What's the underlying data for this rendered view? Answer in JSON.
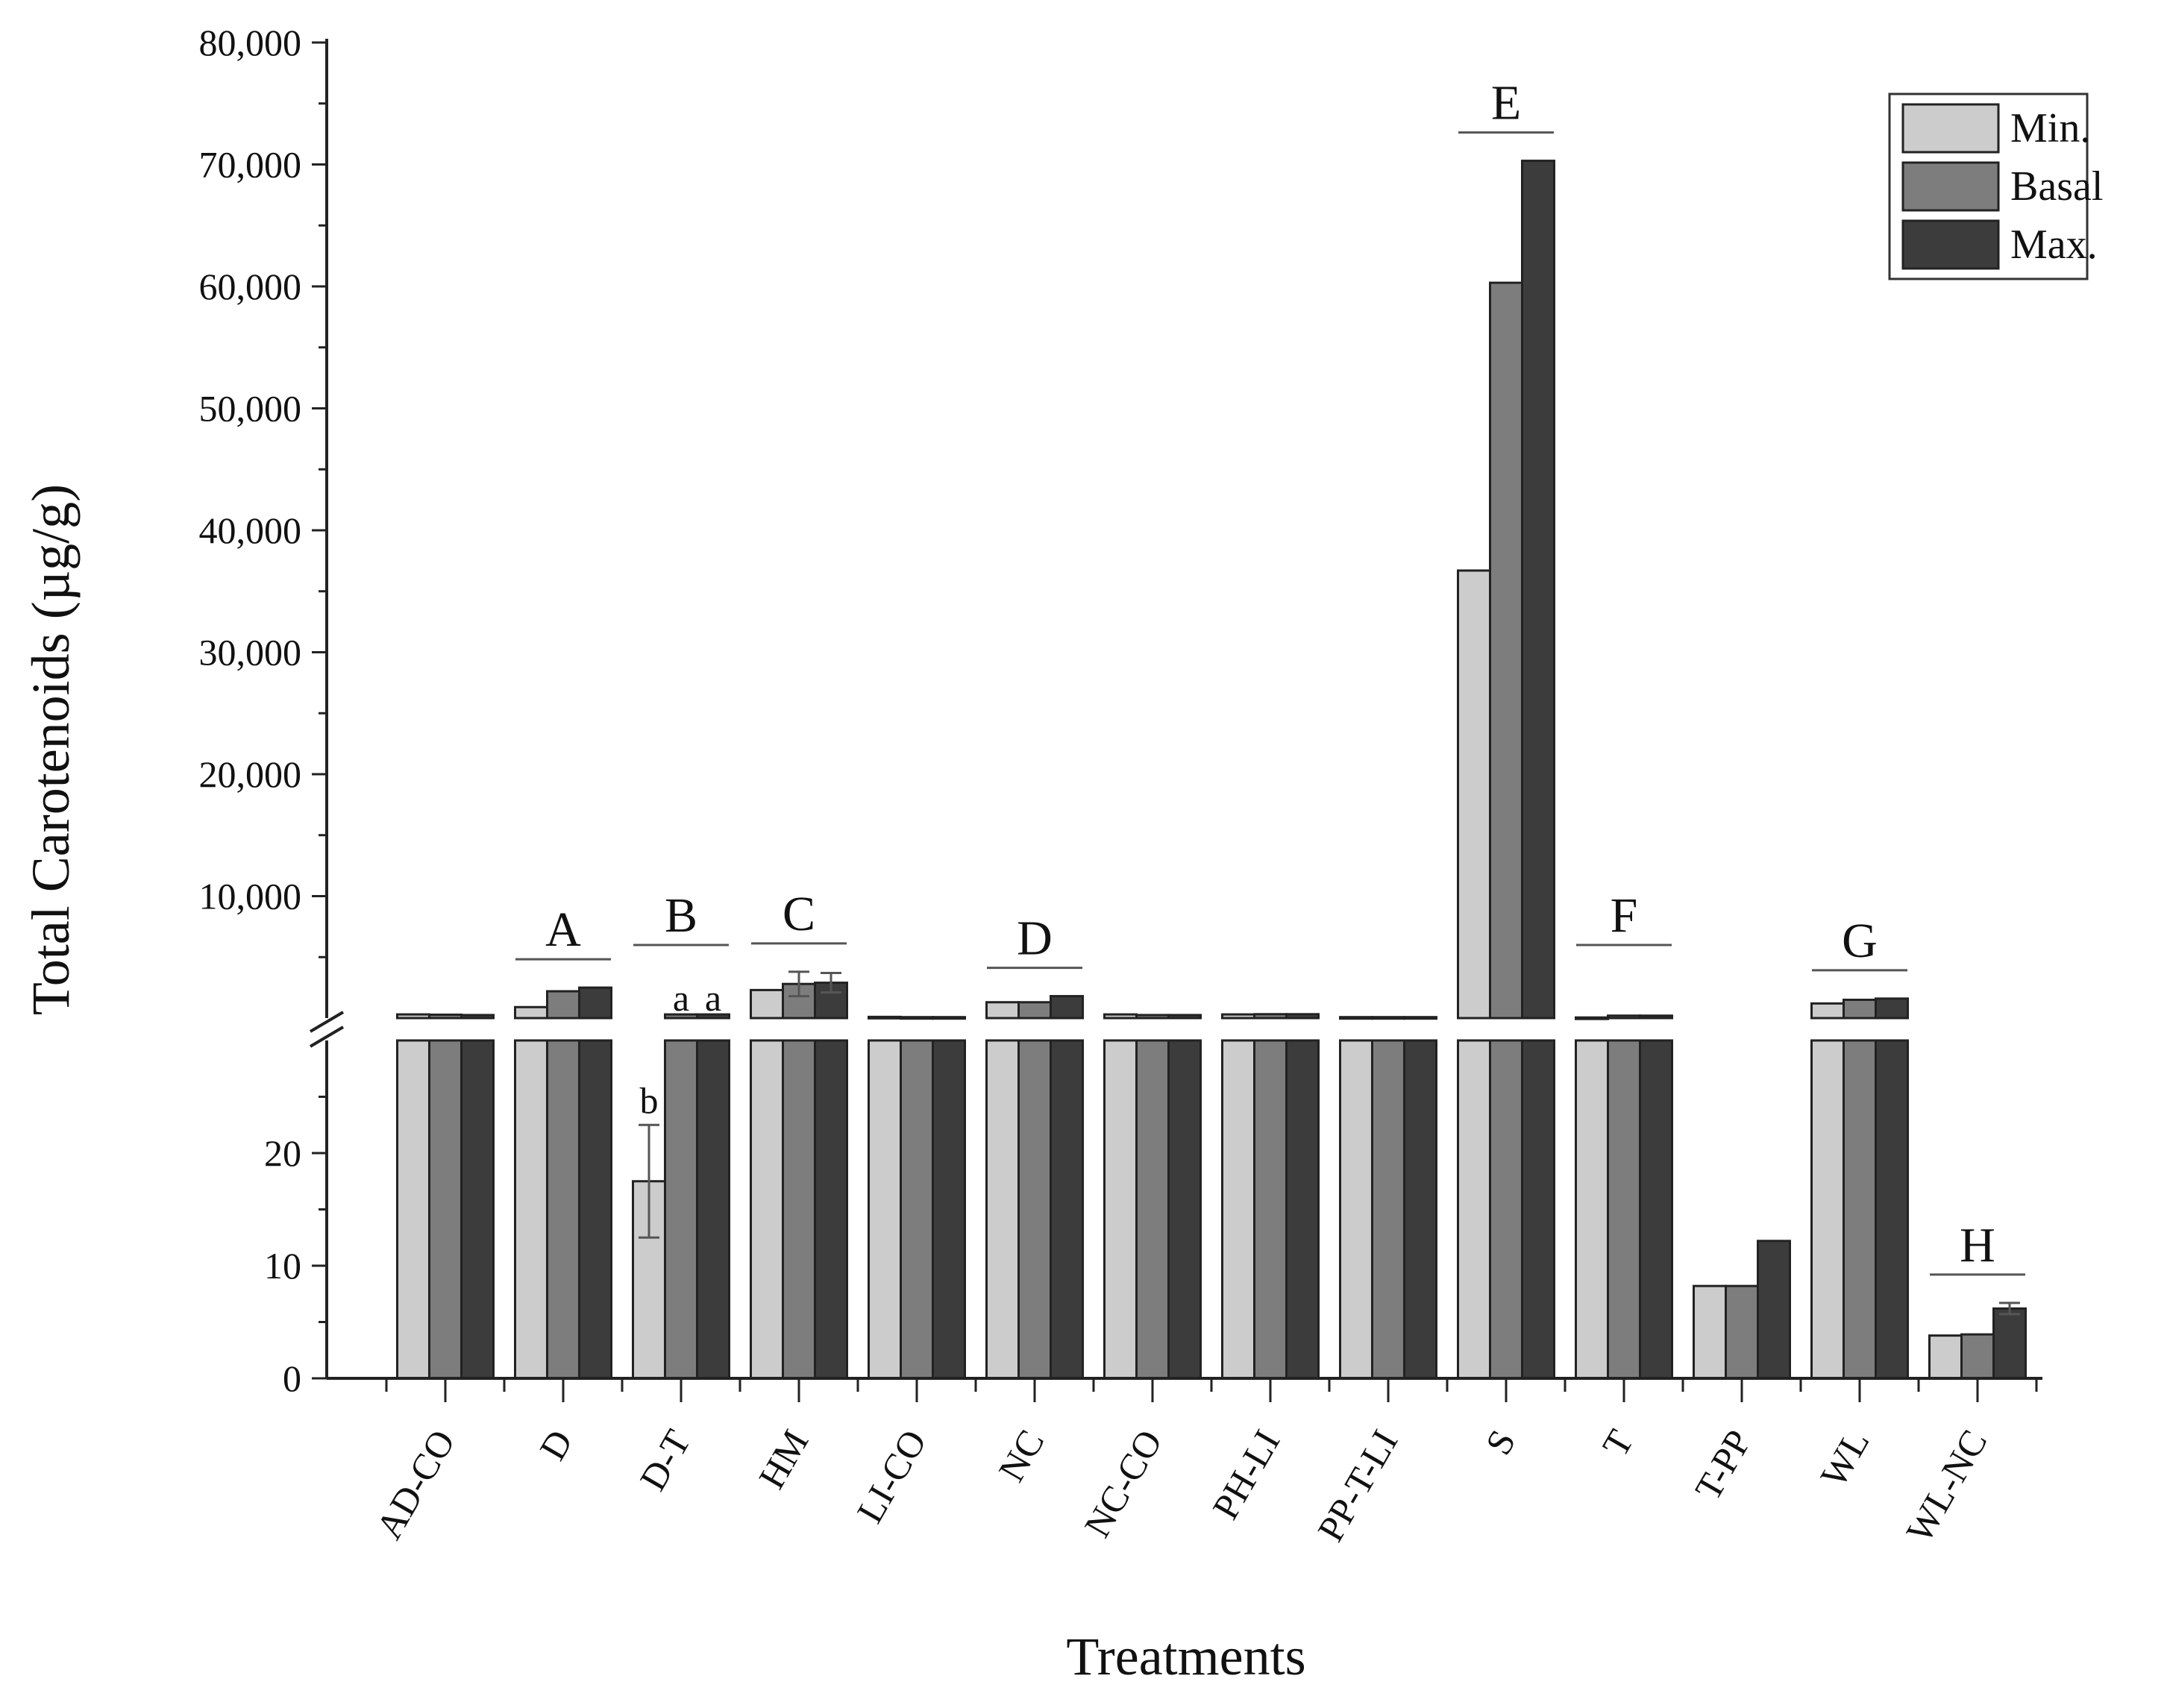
{
  "chart_data": {
    "type": "bar",
    "title": "",
    "xlabel": "Treatments",
    "ylabel": "Total Carotenoids (µg/g)",
    "axis_break": true,
    "upper_ylim": [
      0,
      80000
    ],
    "upper_ticks": [
      10000,
      20000,
      30000,
      40000,
      50000,
      60000,
      70000,
      80000
    ],
    "upper_tick_labels": [
      "10,000",
      "20,000",
      "30,000",
      "40,000",
      "50,000",
      "60,000",
      "70,000",
      "80,000"
    ],
    "lower_ylim": [
      0,
      30
    ],
    "lower_ticks": [
      0,
      10,
      20
    ],
    "lower_tick_labels": [
      "0",
      "10",
      "20"
    ],
    "categories": [
      "AD-CO",
      "D",
      "D-T",
      "HM",
      "LI-CO",
      "NC",
      "NC-CO",
      "PH-LI",
      "PP-T-LI",
      "S",
      "T",
      "T-PP",
      "WL",
      "WL-NC"
    ],
    "series": [
      {
        "name": "Min.",
        "color": "#cccccc",
        "values": [
          300,
          900,
          17.5,
          2300,
          100,
          1300,
          300,
          300,
          80,
          36700,
          50,
          8.2,
          1200,
          3.8
        ]
      },
      {
        "name": "Basal",
        "color": "#7d7d7d",
        "values": [
          280,
          2200,
          300,
          2800,
          80,
          1300,
          250,
          320,
          80,
          60300,
          200,
          8.2,
          1500,
          3.9
        ]
      },
      {
        "name": "Max.",
        "color": "#3c3c3c",
        "values": [
          250,
          2500,
          300,
          2900,
          80,
          1800,
          250,
          320,
          80,
          70300,
          200,
          12.2,
          1600,
          6.2
        ]
      }
    ],
    "error_bars": [
      {
        "category": "D-T",
        "series": "Min.",
        "error": 5
      },
      {
        "category": "HM",
        "series": "Basal",
        "error": 1000
      },
      {
        "category": "HM",
        "series": "Max.",
        "error": 800
      },
      {
        "category": "WL-NC",
        "series": "Max.",
        "error": 0.5
      }
    ],
    "group_annotations": [
      {
        "letter": "A",
        "category": "D"
      },
      {
        "letter": "B",
        "category": "D-T"
      },
      {
        "letter": "C",
        "category": "HM"
      },
      {
        "letter": "D",
        "category": "NC"
      },
      {
        "letter": "E",
        "category": "S"
      },
      {
        "letter": "F",
        "category": "T"
      },
      {
        "letter": "G",
        "category": "WL"
      },
      {
        "letter": "H",
        "category": "WL-NC"
      }
    ],
    "bar_annotations": [
      {
        "text": "b",
        "category": "D-T",
        "series": "Min."
      },
      {
        "text": "a",
        "category": "D-T",
        "series": "Basal"
      },
      {
        "text": "a",
        "category": "D-T",
        "series": "Max."
      }
    ],
    "legend": {
      "position": "top-right",
      "entries": [
        "Min.",
        "Basal",
        "Max."
      ]
    }
  }
}
